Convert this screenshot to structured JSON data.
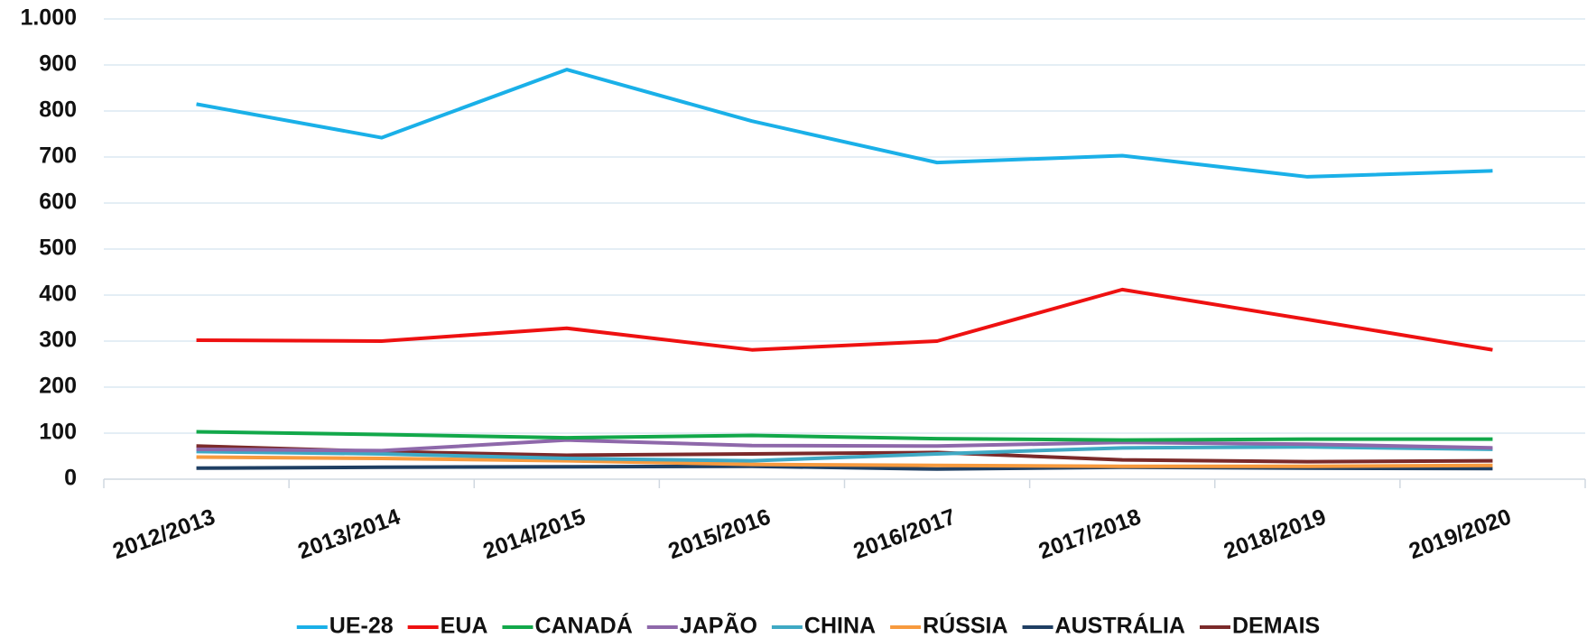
{
  "chart_data": {
    "type": "line",
    "categories": [
      "2012/2013",
      "2013/2014",
      "2014/2015",
      "2015/2016",
      "2016/2017",
      "2017/2018",
      "2018/2019",
      "2019/2020"
    ],
    "series": [
      {
        "name": "UE-28",
        "color": "#1ab0e8",
        "values": [
          815,
          742,
          890,
          778,
          688,
          703,
          657,
          670
        ]
      },
      {
        "name": "EUA",
        "color": "#ee1111",
        "values": [
          302,
          300,
          328,
          281,
          300,
          412,
          347,
          281
        ]
      },
      {
        "name": "CANADÁ",
        "color": "#12a84a",
        "values": [
          103,
          97,
          90,
          95,
          88,
          85,
          87,
          87
        ]
      },
      {
        "name": "JAPÃO",
        "color": "#8e68aa",
        "values": [
          65,
          62,
          85,
          73,
          72,
          80,
          76,
          68
        ]
      },
      {
        "name": "CHINA",
        "color": "#3fa9c4",
        "values": [
          60,
          55,
          45,
          40,
          55,
          68,
          70,
          65
        ]
      },
      {
        "name": "RÚSSIA",
        "color": "#f79a3e",
        "values": [
          48,
          45,
          40,
          32,
          30,
          28,
          28,
          30
        ]
      },
      {
        "name": "AUSTRÁLIA",
        "color": "#1f3f63",
        "values": [
          24,
          26,
          27,
          28,
          22,
          26,
          24,
          23
        ]
      },
      {
        "name": "DEMAIS",
        "color": "#7b2a2a",
        "values": [
          72,
          60,
          52,
          55,
          58,
          42,
          38,
          40
        ]
      }
    ],
    "ylim": [
      0,
      1000
    ],
    "yticks": [
      0,
      100,
      200,
      300,
      400,
      500,
      600,
      700,
      800,
      900,
      {
        "value": 1000,
        "label": "1.000"
      }
    ],
    "grid": true,
    "legend": "bottom"
  }
}
